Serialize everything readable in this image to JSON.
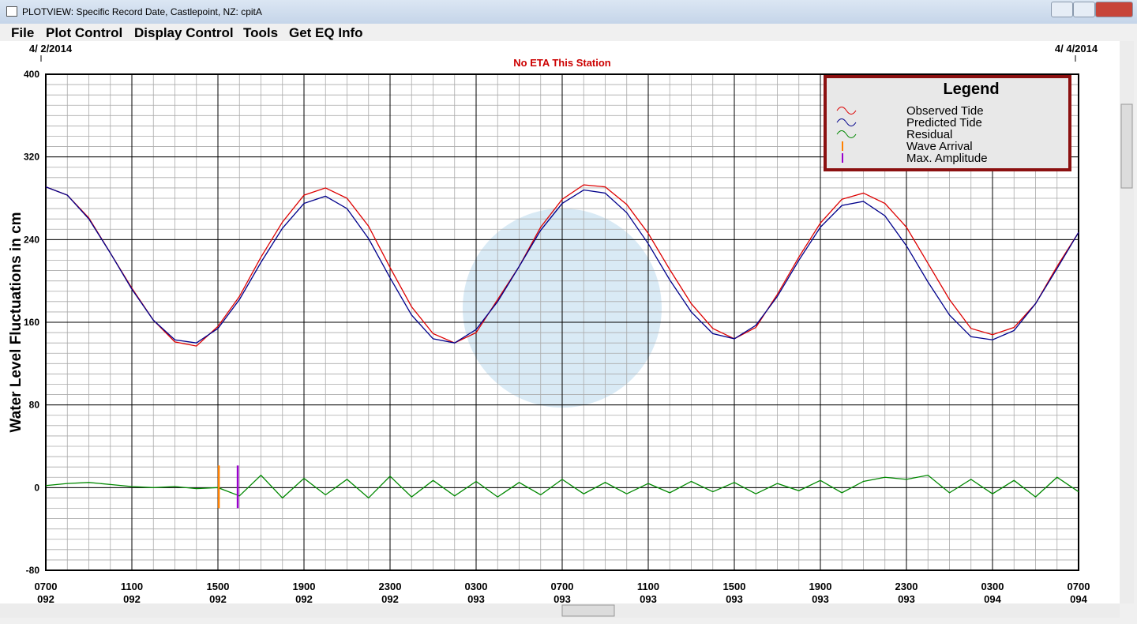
{
  "window": {
    "title": "PLOTVIEW: Specific Record Date, Castlepoint, NZ: cpitA",
    "menu": [
      "File",
      "Plot Control",
      "Display Control",
      "Tools",
      "Get EQ Info"
    ]
  },
  "chart_data": {
    "type": "line",
    "subtitle": "No ETA This Station",
    "start_date": "4/ 2/2014",
    "end_date": "4/ 4/2014",
    "y_label": "Water Level Fluctuations in cm",
    "legend_title": "Legend",
    "legend": "upper right",
    "x": [
      0,
      1,
      2,
      3,
      4,
      5,
      6,
      7,
      8,
      9,
      10,
      11,
      12,
      13,
      14,
      15,
      16,
      17,
      18,
      19,
      20,
      21,
      22,
      23,
      24,
      25,
      26,
      27,
      28,
      29,
      30,
      31,
      32,
      33,
      34,
      35,
      36,
      37,
      38,
      39,
      40,
      41,
      42,
      43,
      44,
      45,
      46,
      47,
      48
    ],
    "series": [
      {
        "name": "Observed Tide",
        "color": "#dd0000",
        "values": [
          291,
          283,
          261,
          227,
          193,
          162,
          141,
          137,
          156,
          185,
          223,
          257,
          283,
          290,
          280,
          253,
          213,
          175,
          149,
          140,
          150,
          182,
          214,
          252,
          279,
          293,
          291,
          274,
          246,
          211,
          178,
          154,
          144,
          155,
          187,
          223,
          256,
          279,
          285,
          275,
          252,
          217,
          182,
          154,
          148,
          155,
          178,
          214,
          247
        ]
      },
      {
        "name": "Predicted Tide",
        "color": "#00008b",
        "values": [
          291,
          283,
          260,
          227,
          192,
          162,
          143,
          140,
          154,
          182,
          218,
          251,
          275,
          282,
          270,
          241,
          203,
          167,
          144,
          140,
          153,
          180,
          214,
          249,
          275,
          288,
          285,
          266,
          236,
          201,
          170,
          149,
          144,
          157,
          185,
          220,
          252,
          273,
          277,
          263,
          234,
          199,
          167,
          146,
          143,
          152,
          178,
          212,
          247
        ]
      },
      {
        "name": "Residual",
        "color": "#008800",
        "values": [
          2,
          4,
          5,
          3,
          1,
          0,
          1,
          -1,
          0,
          -8,
          12,
          -10,
          9,
          -7,
          8,
          -10,
          11,
          -9,
          7,
          -8,
          6,
          -9,
          5,
          -7,
          8,
          -6,
          5,
          -6,
          4,
          -5,
          6,
          -4,
          5,
          -6,
          4,
          -3,
          7,
          -5,
          6,
          10,
          8,
          12,
          -5,
          8,
          -6,
          7,
          -9,
          10,
          -4
        ]
      }
    ],
    "events": [
      {
        "name": "Wave Arrival",
        "color": "#ff8000",
        "x": 8.04
      },
      {
        "name": "Max. Amplitude",
        "color": "#9900cc",
        "x": 8.92
      }
    ],
    "xlim": [
      0,
      48
    ],
    "xticks": [
      {
        "value": 0,
        "label": "0700"
      },
      {
        "value": 4,
        "label": "1100"
      },
      {
        "value": 8,
        "label": "1500"
      },
      {
        "value": 12,
        "label": "1900"
      },
      {
        "value": 16,
        "label": "2300"
      },
      {
        "value": 20,
        "label": "0300"
      },
      {
        "value": 24,
        "label": "0700"
      },
      {
        "value": 28,
        "label": "1100"
      },
      {
        "value": 32,
        "label": "1500"
      },
      {
        "value": 36,
        "label": "1900"
      },
      {
        "value": 40,
        "label": "2300"
      },
      {
        "value": 44,
        "label": "0300"
      },
      {
        "value": 48,
        "label": "0700"
      }
    ],
    "xtick_days": [
      "092",
      "092",
      "092",
      "092",
      "092",
      "093",
      "093",
      "093",
      "093",
      "093",
      "093",
      "094",
      "094"
    ],
    "ylim": [
      -80,
      400
    ],
    "yticks": [
      -80,
      0,
      80,
      160,
      240,
      320,
      400
    ],
    "grid": true,
    "grid_step_x": 1,
    "grid_step_y": 10
  }
}
